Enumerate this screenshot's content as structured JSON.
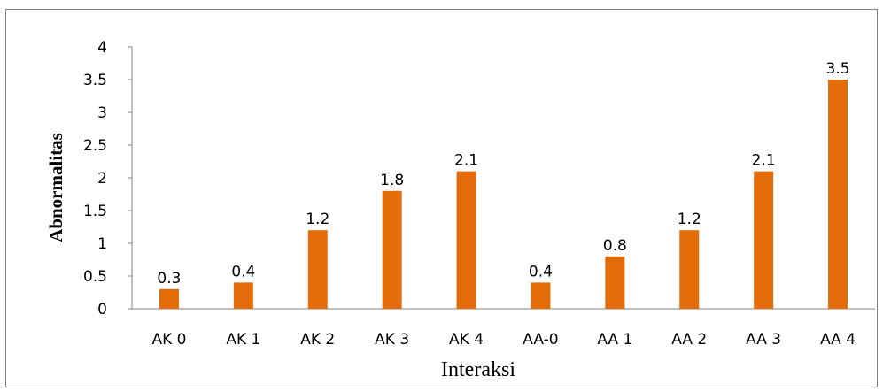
{
  "chart_data": {
    "type": "bar",
    "categories": [
      "AK 0",
      "AK 1",
      "AK 2",
      "AK 3",
      "AK 4",
      "AA-0",
      "AA 1",
      "AA 2",
      "AA 3",
      "AA 4"
    ],
    "series": [
      {
        "values": [
          0.3,
          0.4,
          1.2,
          1.8,
          2.1,
          0.4,
          0.8,
          1.2,
          2.1,
          3.5
        ],
        "color": "#e36c0a"
      }
    ],
    "data_labels": [
      "0.3",
      "0.4",
      "1.2",
      "1.8",
      "2.1",
      "0.4",
      "0.8",
      "1.2",
      "2.1",
      "3.5"
    ],
    "xlabel": "Interaksi",
    "ylabel": "Abnormalitas",
    "ylim": [
      0,
      4
    ],
    "yticks": [
      0,
      0.5,
      1,
      1.5,
      2,
      2.5,
      3,
      3.5,
      4
    ],
    "ytick_labels": [
      "0",
      "0.5",
      "1",
      "1.5",
      "2",
      "2.5",
      "3",
      "3.5",
      "4"
    ],
    "grid": false,
    "legend": "none"
  }
}
